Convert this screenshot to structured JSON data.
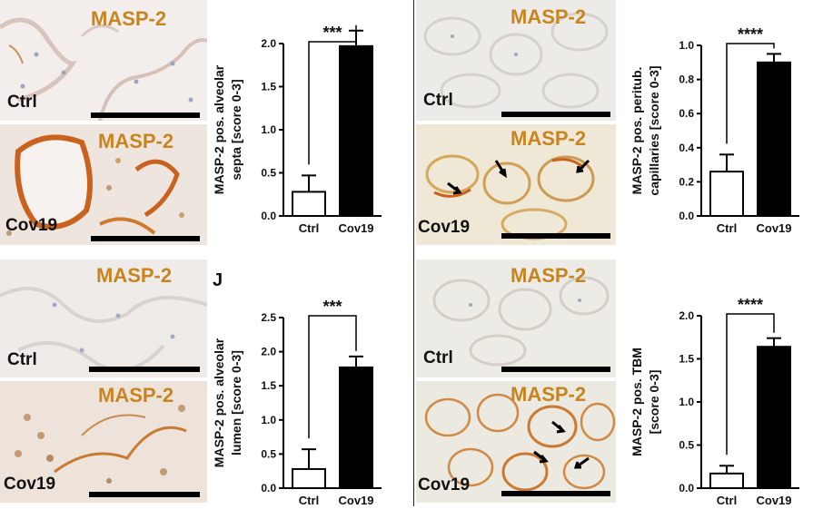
{
  "panels": [
    {
      "top_stain": "MASP-2",
      "top_group": "Ctrl",
      "bottom_stain": "MASP-2",
      "bottom_group": "Cov19"
    },
    {
      "top_stain": "MASP-2",
      "top_group": "Ctrl",
      "bottom_stain": "MASP-2",
      "bottom_group": "Cov19"
    },
    {
      "top_stain": "MASP-2",
      "top_group": "Ctrl",
      "bottom_stain": "MASP-2",
      "bottom_group": "Cov19"
    },
    {
      "top_stain": "MASP-2",
      "top_group": "Ctrl",
      "bottom_stain": "MASP-2",
      "bottom_group": "Cov19"
    }
  ],
  "panel_letter": "J",
  "colors": {
    "stain_label": "#c8841e",
    "ctrl_bar": "#ffffff",
    "cov_bar": "#000000"
  },
  "chart_data": [
    {
      "type": "bar",
      "categories": [
        "Ctrl",
        "Cov19"
      ],
      "values": [
        0.28,
        1.97
      ],
      "errors": [
        0.19,
        0.18
      ],
      "ylabel": "MASP-2 pos. alveolar septa [score 0-3]",
      "ylabel_lines": [
        "MASP-2 pos. alveolar",
        "septa [score 0-3]"
      ],
      "ylim": [
        0,
        2.0
      ],
      "yticks": [
        "0.0",
        "0.5",
        "1.0",
        "1.5",
        "2.0"
      ],
      "significance": "***"
    },
    {
      "type": "bar",
      "categories": [
        "Ctrl",
        "Cov19"
      ],
      "values": [
        0.26,
        0.9
      ],
      "errors": [
        0.1,
        0.05
      ],
      "ylabel": "MASP-2 pos. peritub. capillaries [score 0-3]",
      "ylabel_lines": [
        "MASP-2 pos. peritub.",
        "capillaries [score 0-3]"
      ],
      "ylim": [
        0,
        1.0
      ],
      "yticks": [
        "0.0",
        "0.2",
        "0.4",
        "0.6",
        "0.8",
        "1.0"
      ],
      "significance": "****"
    },
    {
      "type": "bar",
      "categories": [
        "Ctrl",
        "Cov19"
      ],
      "values": [
        0.28,
        1.77
      ],
      "errors": [
        0.29,
        0.16
      ],
      "ylabel": "MASP-2 pos. alveolar lumen [score 0-3]",
      "ylabel_lines": [
        "MASP-2 pos. alveolar",
        "lumen [score 0-3]"
      ],
      "ylim": [
        0,
        2.5
      ],
      "yticks": [
        "0.0",
        "0.5",
        "1.0",
        "1.5",
        "2.0",
        "2.5"
      ],
      "significance": "***"
    },
    {
      "type": "bar",
      "categories": [
        "Ctrl",
        "Cov19"
      ],
      "values": [
        0.17,
        1.64
      ],
      "errors": [
        0.09,
        0.1
      ],
      "ylabel": "MASP-2 pos. TBM [score 0-3]",
      "ylabel_lines": [
        "MASP-2 pos. TBM",
        "[score 0-3]"
      ],
      "ylim": [
        0,
        2.0
      ],
      "yticks": [
        "0.0",
        "0.5",
        "1.0",
        "1.5",
        "2.0"
      ],
      "significance": "****"
    }
  ]
}
